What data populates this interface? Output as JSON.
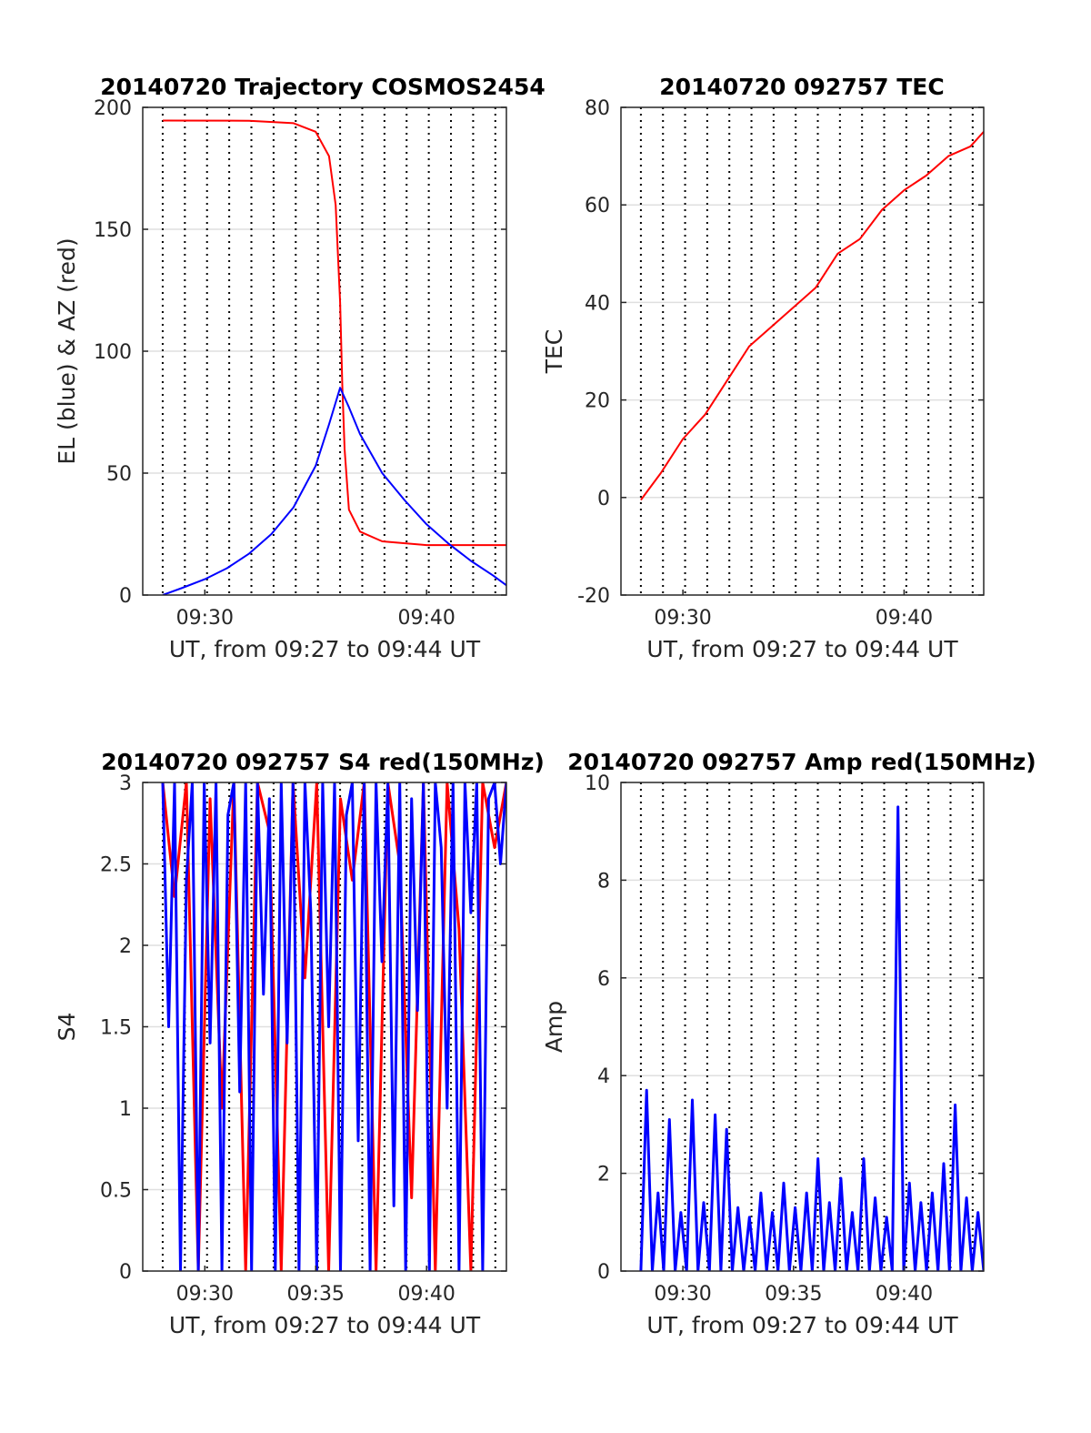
{
  "chart_data": [
    {
      "type": "line",
      "title": "20140720 Trajectory COSMOS2454",
      "xlabel": "UT, from 09:27 to 09:44 UT",
      "ylabel": "EL (blue) & AZ (red)",
      "xlim": [
        9.2,
        25.6
      ],
      "ylim": [
        0,
        200
      ],
      "xticks": [
        {
          "value": 12,
          "label": "09:30"
        },
        {
          "value": 22,
          "label": "09:40"
        }
      ],
      "yticks": [
        0,
        50,
        100,
        150,
        200
      ],
      "grid": true,
      "series": [
        {
          "color": "#ff0000",
          "x": [
            10.1,
            14,
            16,
            17,
            17.6,
            17.9,
            18.1,
            18.2,
            18.3,
            18.5,
            19,
            20,
            22,
            25.6
          ],
          "values": [
            194.6,
            194.5,
            193.5,
            190,
            180,
            160,
            120,
            86,
            60,
            35,
            26,
            22,
            20.5,
            20.5
          ]
        },
        {
          "color": "#0000ff",
          "x": [
            10.1,
            11,
            12,
            13,
            14,
            15,
            16,
            17,
            17.6,
            18.1,
            18.5,
            19,
            20,
            21,
            22,
            23,
            24,
            25,
            25.6
          ],
          "values": [
            0,
            3,
            6.5,
            11,
            17,
            25,
            36,
            53,
            70,
            85,
            77,
            66,
            50,
            39,
            29,
            21,
            14,
            8,
            4
          ]
        }
      ]
    },
    {
      "type": "line",
      "title": "20140720 092757 TEC",
      "xlabel": "UT, from 09:27 to 09:44 UT",
      "ylabel": "TEC",
      "xlim": [
        9.2,
        25.6
      ],
      "ylim": [
        -20,
        80
      ],
      "xticks": [
        {
          "value": 12,
          "label": "09:30"
        },
        {
          "value": 22,
          "label": "09:40"
        }
      ],
      "yticks": [
        -20,
        0,
        20,
        40,
        60,
        80
      ],
      "grid": true,
      "series": [
        {
          "color": "#ff0000",
          "x": [
            10.1,
            11,
            12,
            13,
            14,
            15,
            16,
            17,
            18,
            19,
            20,
            21,
            22,
            23,
            24,
            25,
            25.6
          ],
          "values": [
            -0.5,
            5,
            12,
            17,
            24,
            31,
            35,
            39,
            43,
            50,
            53,
            59,
            63,
            66,
            70,
            72,
            75
          ]
        }
      ]
    },
    {
      "type": "line",
      "title": "20140720 092757 S4 red(150MHz)",
      "xlabel": "UT, from 09:27 to 09:44 UT",
      "ylabel": "S4",
      "xlim": [
        9.2,
        25.6
      ],
      "ylim": [
        0,
        3
      ],
      "xticks": [
        {
          "value": 12,
          "label": "09:30"
        },
        {
          "value": 17,
          "label": "09:35"
        },
        {
          "value": 22,
          "label": "09:40"
        }
      ],
      "yticks": [
        0,
        0.5,
        1,
        1.5,
        2,
        2.5,
        3
      ],
      "grid": true,
      "series": [
        {
          "color": "#ff0000",
          "x_start": 10.1,
          "x_end": 25.6,
          "values": [
            3,
            2.3,
            3,
            0,
            2.9,
            1,
            3,
            0,
            3,
            2.7,
            0,
            3,
            1.8,
            3,
            0,
            2.9,
            2.4,
            3,
            0,
            3,
            2.5,
            0.45,
            3,
            0,
            3,
            2.1,
            0,
            3,
            2.6,
            3
          ]
        },
        {
          "color": "#0000ff",
          "x_start": 10.1,
          "x_end": 25.6,
          "values": [
            3,
            1.5,
            3,
            0,
            2.4,
            3,
            0,
            3,
            1.4,
            3,
            0,
            2.8,
            3,
            1.1,
            3,
            0,
            3,
            1.7,
            2.9,
            0,
            3,
            1.4,
            3,
            0,
            3,
            2.2,
            0,
            3,
            1.5,
            3,
            0,
            2.8,
            3,
            0.8,
            3,
            0,
            3,
            1.9,
            3,
            0.4,
            3,
            0,
            2.9,
            1.6,
            3,
            0,
            3,
            2.6,
            1,
            3,
            0,
            3,
            2.2,
            3,
            0,
            2.9,
            3,
            2.5,
            3
          ]
        }
      ]
    },
    {
      "type": "line",
      "title": "20140720 092757 Amp red(150MHz)",
      "xlabel": "UT, from 09:27 to 09:44 UT",
      "ylabel": "Amp",
      "xlim": [
        9.2,
        25.6
      ],
      "ylim": [
        0,
        10
      ],
      "xticks": [
        {
          "value": 12,
          "label": "09:30"
        },
        {
          "value": 17,
          "label": "09:35"
        },
        {
          "value": 22,
          "label": "09:40"
        }
      ],
      "yticks": [
        0,
        2,
        4,
        6,
        8,
        10
      ],
      "grid": true,
      "series": [
        {
          "color": "#0000ff",
          "x_start": 10.1,
          "x_end": 25.6,
          "values": [
            0,
            3.7,
            0,
            1.6,
            0,
            3.1,
            0,
            1.2,
            0,
            3.5,
            0,
            1.4,
            0,
            3.2,
            0,
            2.9,
            0,
            1.3,
            0,
            1.1,
            0,
            1.6,
            0,
            1.2,
            0,
            1.8,
            0,
            1.3,
            0,
            1.6,
            0,
            2.3,
            0,
            1.4,
            0,
            1.9,
            0,
            1.2,
            0,
            2.3,
            0,
            1.5,
            0,
            1.1,
            0,
            9.5,
            0,
            1.8,
            0,
            1.4,
            0,
            1.6,
            0,
            2.2,
            0,
            3.4,
            0,
            1.5,
            0,
            1.2,
            0
          ]
        }
      ]
    }
  ]
}
